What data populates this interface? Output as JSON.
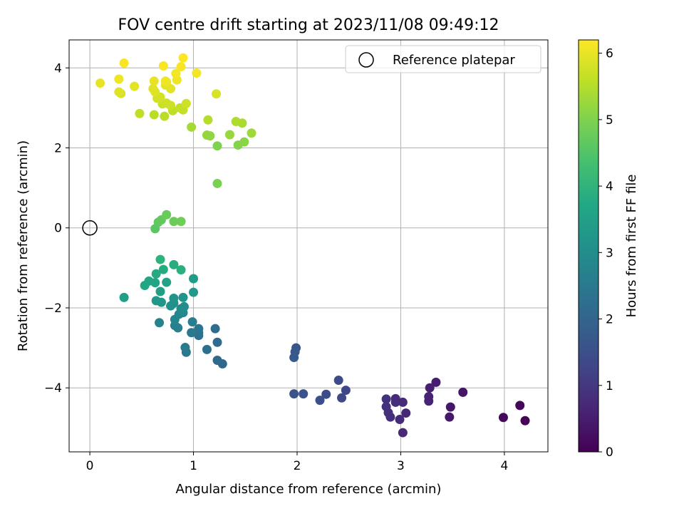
{
  "chart_data": {
    "type": "scatter",
    "title": "FOV centre drift starting at 2023/11/08 09:49:12",
    "xlabel": "Angular distance from reference (arcmin)",
    "ylabel": "Rotation from reference (arcmin)",
    "xlim": [
      -0.2,
      4.42
    ],
    "ylim": [
      -5.6,
      4.7
    ],
    "xticks": [
      0,
      1,
      2,
      3,
      4
    ],
    "xtick_labels": [
      "0",
      "1",
      "2",
      "3",
      "4"
    ],
    "yticks": [
      -4,
      -2,
      0,
      2,
      4
    ],
    "ytick_labels": [
      "−4",
      "−2",
      "0",
      "2",
      "4"
    ],
    "grid": true,
    "legend": {
      "placement": "top-right",
      "entries": [
        "Reference platepar"
      ]
    },
    "colorbar": {
      "label": "Hours from first FF file",
      "range": [
        0,
        6.2
      ],
      "ticks": [
        0,
        1,
        2,
        3,
        4,
        5,
        6
      ],
      "tick_labels": [
        "0",
        "1",
        "2",
        "3",
        "4",
        "5",
        "6"
      ],
      "colormap": "viridis"
    },
    "reference_point": {
      "x": 0,
      "y": 0
    },
    "series": [
      {
        "points": [
          {
            "x": 4.2,
            "y": -4.82,
            "c": 0.05
          },
          {
            "x": 4.15,
            "y": -4.44,
            "c": 0.1
          },
          {
            "x": 3.99,
            "y": -4.74,
            "c": 0.15
          },
          {
            "x": 3.6,
            "y": -4.11,
            "c": 0.35
          },
          {
            "x": 3.48,
            "y": -4.48,
            "c": 0.4
          },
          {
            "x": 3.47,
            "y": -4.73,
            "c": 0.42
          },
          {
            "x": 3.34,
            "y": -3.86,
            "c": 0.5
          },
          {
            "x": 3.28,
            "y": -4.0,
            "c": 0.55
          },
          {
            "x": 3.27,
            "y": -4.22,
            "c": 0.58
          },
          {
            "x": 3.27,
            "y": -4.33,
            "c": 0.6
          },
          {
            "x": 3.05,
            "y": -4.63,
            "c": 0.7
          },
          {
            "x": 3.02,
            "y": -5.12,
            "c": 0.72
          },
          {
            "x": 3.02,
            "y": -4.36,
            "c": 0.74
          },
          {
            "x": 2.99,
            "y": -4.79,
            "c": 0.76
          },
          {
            "x": 2.95,
            "y": -4.27,
            "c": 0.78
          },
          {
            "x": 2.95,
            "y": -4.36,
            "c": 0.8
          },
          {
            "x": 2.9,
            "y": -4.73,
            "c": 0.82
          },
          {
            "x": 2.88,
            "y": -4.62,
            "c": 0.85
          },
          {
            "x": 2.86,
            "y": -4.47,
            "c": 0.88
          },
          {
            "x": 2.86,
            "y": -4.28,
            "c": 0.9
          },
          {
            "x": 2.47,
            "y": -4.06,
            "c": 1.3
          },
          {
            "x": 2.43,
            "y": -4.25,
            "c": 1.35
          },
          {
            "x": 2.4,
            "y": -3.81,
            "c": 1.4
          },
          {
            "x": 2.28,
            "y": -4.16,
            "c": 1.45
          },
          {
            "x": 2.22,
            "y": -4.31,
            "c": 1.5
          },
          {
            "x": 2.06,
            "y": -4.15,
            "c": 1.55
          },
          {
            "x": 1.97,
            "y": -4.15,
            "c": 1.6
          },
          {
            "x": 1.99,
            "y": -3.0,
            "c": 1.65
          },
          {
            "x": 1.98,
            "y": -3.1,
            "c": 1.7
          },
          {
            "x": 1.97,
            "y": -3.24,
            "c": 1.75
          },
          {
            "x": 1.28,
            "y": -3.4,
            "c": 2.05
          },
          {
            "x": 1.23,
            "y": -3.31,
            "c": 2.1
          },
          {
            "x": 1.23,
            "y": -2.86,
            "c": 2.15
          },
          {
            "x": 1.21,
            "y": -2.52,
            "c": 2.2
          },
          {
            "x": 1.13,
            "y": -3.04,
            "c": 2.25
          },
          {
            "x": 1.05,
            "y": -2.69,
            "c": 2.3
          },
          {
            "x": 1.05,
            "y": -2.62,
            "c": 2.35
          },
          {
            "x": 1.05,
            "y": -2.52,
            "c": 2.4
          },
          {
            "x": 0.98,
            "y": -2.62,
            "c": 2.45
          },
          {
            "x": 0.93,
            "y": -3.11,
            "c": 2.5
          },
          {
            "x": 0.92,
            "y": -2.99,
            "c": 2.55
          },
          {
            "x": 0.99,
            "y": -2.35,
            "c": 2.6
          },
          {
            "x": 0.85,
            "y": -2.5,
            "c": 2.65
          },
          {
            "x": 0.82,
            "y": -2.44,
            "c": 2.7
          },
          {
            "x": 0.67,
            "y": -2.37,
            "c": 2.75
          },
          {
            "x": 0.82,
            "y": -2.29,
            "c": 2.8
          },
          {
            "x": 0.86,
            "y": -2.16,
            "c": 2.85
          },
          {
            "x": 0.9,
            "y": -2.12,
            "c": 2.9
          },
          {
            "x": 0.88,
            "y": -2.02,
            "c": 2.95
          },
          {
            "x": 0.91,
            "y": -1.97,
            "c": 3.0
          },
          {
            "x": 0.81,
            "y": -1.88,
            "c": 3.05
          },
          {
            "x": 0.78,
            "y": -1.95,
            "c": 3.1
          },
          {
            "x": 0.81,
            "y": -1.76,
            "c": 3.15
          },
          {
            "x": 0.9,
            "y": -1.74,
            "c": 3.2
          },
          {
            "x": 0.69,
            "y": -1.86,
            "c": 3.25
          },
          {
            "x": 0.64,
            "y": -1.82,
            "c": 3.3
          },
          {
            "x": 1.0,
            "y": -1.61,
            "c": 3.35
          },
          {
            "x": 1.0,
            "y": -1.27,
            "c": 3.4
          },
          {
            "x": 0.68,
            "y": -1.59,
            "c": 3.45
          },
          {
            "x": 0.33,
            "y": -1.74,
            "c": 3.5
          },
          {
            "x": 0.74,
            "y": -1.36,
            "c": 3.55
          },
          {
            "x": 0.63,
            "y": -1.37,
            "c": 3.6
          },
          {
            "x": 0.57,
            "y": -1.33,
            "c": 3.65
          },
          {
            "x": 0.53,
            "y": -1.44,
            "c": 3.7
          },
          {
            "x": 0.64,
            "y": -1.15,
            "c": 3.75
          },
          {
            "x": 0.71,
            "y": -1.04,
            "c": 3.8
          },
          {
            "x": 0.81,
            "y": -0.92,
            "c": 3.85
          },
          {
            "x": 0.88,
            "y": -1.05,
            "c": 3.9
          },
          {
            "x": 0.68,
            "y": -0.79,
            "c": 3.95
          },
          {
            "x": 0.63,
            "y": -0.02,
            "c": 4.6
          },
          {
            "x": 0.66,
            "y": 0.14,
            "c": 4.65
          },
          {
            "x": 0.69,
            "y": 0.2,
            "c": 4.7
          },
          {
            "x": 0.74,
            "y": 0.33,
            "c": 4.75
          },
          {
            "x": 0.81,
            "y": 0.16,
            "c": 4.8
          },
          {
            "x": 0.88,
            "y": 0.16,
            "c": 4.85
          },
          {
            "x": 1.23,
            "y": 1.11,
            "c": 4.95
          },
          {
            "x": 1.23,
            "y": 2.05,
            "c": 5.0
          },
          {
            "x": 1.43,
            "y": 2.07,
            "c": 5.05
          },
          {
            "x": 1.49,
            "y": 2.15,
            "c": 5.1
          },
          {
            "x": 1.16,
            "y": 2.3,
            "c": 5.15
          },
          {
            "x": 1.13,
            "y": 2.32,
            "c": 5.2
          },
          {
            "x": 1.35,
            "y": 2.33,
            "c": 5.25
          },
          {
            "x": 1.56,
            "y": 2.37,
            "c": 5.3
          },
          {
            "x": 0.98,
            "y": 2.52,
            "c": 5.35
          },
          {
            "x": 1.47,
            "y": 2.62,
            "c": 5.4
          },
          {
            "x": 1.41,
            "y": 2.66,
            "c": 5.45
          },
          {
            "x": 1.14,
            "y": 2.7,
            "c": 5.5
          },
          {
            "x": 0.62,
            "y": 2.83,
            "c": 5.55
          },
          {
            "x": 0.72,
            "y": 2.79,
            "c": 5.55
          },
          {
            "x": 0.48,
            "y": 2.86,
            "c": 5.6
          },
          {
            "x": 0.8,
            "y": 2.93,
            "c": 5.6
          },
          {
            "x": 0.9,
            "y": 2.95,
            "c": 5.65
          },
          {
            "x": 0.87,
            "y": 3.0,
            "c": 5.65
          },
          {
            "x": 0.78,
            "y": 3.06,
            "c": 5.7
          },
          {
            "x": 0.7,
            "y": 3.1,
            "c": 5.7
          },
          {
            "x": 0.74,
            "y": 3.12,
            "c": 5.75
          },
          {
            "x": 0.93,
            "y": 3.11,
            "c": 5.75
          },
          {
            "x": 0.65,
            "y": 3.24,
            "c": 5.8
          },
          {
            "x": 0.68,
            "y": 3.27,
            "c": 5.8
          },
          {
            "x": 1.22,
            "y": 3.35,
            "c": 5.85
          },
          {
            "x": 0.3,
            "y": 3.36,
            "c": 5.85
          },
          {
            "x": 0.28,
            "y": 3.4,
            "c": 5.9
          },
          {
            "x": 0.63,
            "y": 3.4,
            "c": 5.9
          },
          {
            "x": 0.61,
            "y": 3.48,
            "c": 5.9
          },
          {
            "x": 0.78,
            "y": 3.48,
            "c": 5.95
          },
          {
            "x": 0.43,
            "y": 3.54,
            "c": 5.95
          },
          {
            "x": 0.73,
            "y": 3.57,
            "c": 5.95
          },
          {
            "x": 0.1,
            "y": 3.62,
            "c": 6.0
          },
          {
            "x": 0.74,
            "y": 3.65,
            "c": 6.0
          },
          {
            "x": 0.62,
            "y": 3.67,
            "c": 6.0
          },
          {
            "x": 0.73,
            "y": 3.67,
            "c": 6.05
          },
          {
            "x": 0.84,
            "y": 3.7,
            "c": 6.05
          },
          {
            "x": 0.28,
            "y": 3.72,
            "c": 6.05
          },
          {
            "x": 0.83,
            "y": 3.86,
            "c": 6.1
          },
          {
            "x": 1.03,
            "y": 3.87,
            "c": 6.1
          },
          {
            "x": 0.71,
            "y": 4.05,
            "c": 6.15
          },
          {
            "x": 0.88,
            "y": 4.03,
            "c": 6.15
          },
          {
            "x": 0.33,
            "y": 4.12,
            "c": 6.15
          },
          {
            "x": 0.9,
            "y": 4.25,
            "c": 6.2
          }
        ]
      }
    ]
  }
}
